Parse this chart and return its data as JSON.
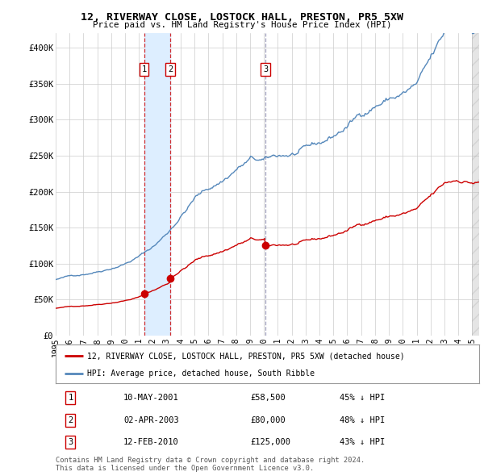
{
  "title": "12, RIVERWAY CLOSE, LOSTOCK HALL, PRESTON, PR5 5XW",
  "subtitle": "Price paid vs. HM Land Registry's House Price Index (HPI)",
  "ylim": [
    0,
    420000
  ],
  "yticks": [
    0,
    50000,
    100000,
    150000,
    200000,
    250000,
    300000,
    350000,
    400000
  ],
  "ytick_labels": [
    "£0",
    "£50K",
    "£100K",
    "£150K",
    "£200K",
    "£250K",
    "£300K",
    "£350K",
    "£400K"
  ],
  "xlim_start": 1995.0,
  "xlim_end": 2025.5,
  "background_color": "#ffffff",
  "grid_color": "#cccccc",
  "hpi_color": "#5588bb",
  "price_color": "#cc0000",
  "purchases": [
    {
      "label": "1",
      "date_num": 2001.37,
      "price": 58500,
      "text": "10-MAY-2001",
      "price_str": "£58,500",
      "pct": "45% ↓ HPI"
    },
    {
      "label": "2",
      "date_num": 2003.25,
      "price": 80000,
      "text": "02-APR-2003",
      "price_str": "£80,000",
      "pct": "48% ↓ HPI"
    },
    {
      "label": "3",
      "date_num": 2010.11,
      "price": 125000,
      "text": "12-FEB-2010",
      "price_str": "£125,000",
      "pct": "43% ↓ HPI"
    }
  ],
  "shade_between_1_2": true,
  "shade_color": "#ddeeff",
  "shade_end_color": "#e8e8e8",
  "footer": "Contains HM Land Registry data © Crown copyright and database right 2024.\nThis data is licensed under the Open Government Licence v3.0.",
  "legend_label_price": "12, RIVERWAY CLOSE, LOSTOCK HALL, PRESTON, PR5 5XW (detached house)",
  "legend_label_hpi": "HPI: Average price, detached house, South Ribble"
}
